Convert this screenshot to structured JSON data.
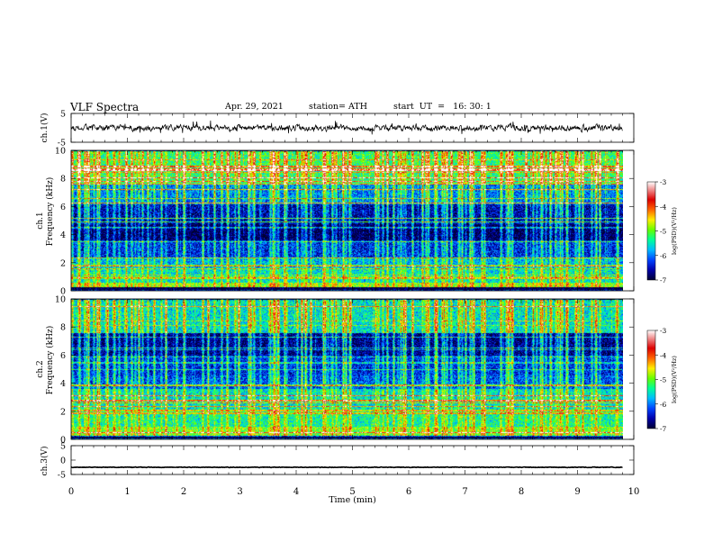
{
  "header": {
    "title": "VLF Spectra",
    "date": "Apr. 29, 2021",
    "station": "station= ATH",
    "start": "start  UT  =   16: 30: 1"
  },
  "chart_data": [
    {
      "type": "line",
      "panel": "ch1-waveform",
      "ylabel": "ch.1(V)",
      "ylim": [
        -5,
        5
      ],
      "yticks": [
        "5",
        "-5"
      ],
      "xlim": [
        0,
        10
      ],
      "data_extent_min": [
        0,
        9.8
      ],
      "baseline_v": 0
    },
    {
      "type": "heatmap",
      "panel": "ch1-spectrogram",
      "ylabel": "ch.1\nFrequency (kHz)",
      "ylabel_line1": "ch.1",
      "ylabel_line2": "Frequency (kHz)",
      "ylim": [
        0,
        10
      ],
      "yticks": [
        "0",
        "2",
        "4",
        "6",
        "8",
        "10"
      ],
      "xlim": [
        0,
        10
      ],
      "data_extent_min": [
        0,
        9.8
      ],
      "colorbar": {
        "label": "log(PSD)(V²/Hz)",
        "range": [
          -7,
          -3
        ],
        "ticks": [
          "-3",
          "-4",
          "-5",
          "-6",
          "-7"
        ]
      },
      "bands_khz": [
        {
          "f0": 0.0,
          "f1": 0.3,
          "level": -7.0
        },
        {
          "f0": 0.3,
          "f1": 0.6,
          "level": -4.5
        },
        {
          "f0": 0.6,
          "f1": 1.6,
          "level": -5.3
        },
        {
          "f0": 1.6,
          "f1": 2.4,
          "level": -5.6
        },
        {
          "f0": 2.4,
          "f1": 3.6,
          "level": -6.2
        },
        {
          "f0": 3.6,
          "f1": 4.8,
          "level": -6.9
        },
        {
          "f0": 4.8,
          "f1": 6.2,
          "level": -6.5
        },
        {
          "f0": 6.2,
          "f1": 7.6,
          "level": -5.8
        },
        {
          "f0": 7.6,
          "f1": 10.0,
          "level": -4.9
        }
      ]
    },
    {
      "type": "heatmap",
      "panel": "ch2-spectrogram",
      "ylabel": "ch.2\nFrequency (kHz)",
      "ylabel_line1": "ch.2",
      "ylabel_line2": "Frequency (kHz)",
      "ylim": [
        0,
        10
      ],
      "yticks": [
        "0",
        "2",
        "4",
        "6",
        "8",
        "10"
      ],
      "xlim": [
        0,
        10
      ],
      "data_extent_min": [
        0,
        9.8
      ],
      "colorbar": {
        "label": "log(PSD)(V²/Hz)",
        "range": [
          -7,
          -3
        ],
        "ticks": [
          "-3",
          "-4",
          "-5",
          "-6",
          "-7"
        ]
      },
      "bands_khz": [
        {
          "f0": 0.0,
          "f1": 0.3,
          "level": -7.0
        },
        {
          "f0": 0.3,
          "f1": 0.9,
          "level": -4.6
        },
        {
          "f0": 0.9,
          "f1": 2.0,
          "level": -5.1
        },
        {
          "f0": 2.0,
          "f1": 3.6,
          "level": -5.3
        },
        {
          "f0": 3.6,
          "f1": 4.6,
          "level": -6.0
        },
        {
          "f0": 4.6,
          "f1": 6.0,
          "level": -6.2
        },
        {
          "f0": 6.0,
          "f1": 7.6,
          "level": -6.7
        },
        {
          "f0": 7.6,
          "f1": 10.0,
          "level": -5.3
        }
      ]
    },
    {
      "type": "line",
      "panel": "ch3-waveform",
      "ylabel": "ch.3(V)",
      "ylim": [
        -5,
        5
      ],
      "yticks": [
        "5",
        "0",
        "-5"
      ],
      "xlim": [
        0,
        10
      ],
      "data_extent_min": [
        0,
        9.8
      ],
      "baseline_v": -2.5,
      "xlabel": "Time  (min)",
      "xticks": [
        "0",
        "1",
        "2",
        "3",
        "4",
        "5",
        "6",
        "7",
        "8",
        "9",
        "10"
      ]
    }
  ],
  "colors": {
    "colormap": [
      "#000033",
      "#0000aa",
      "#0044ff",
      "#00bbff",
      "#00ff99",
      "#66ff00",
      "#ffee00",
      "#ff6600",
      "#dd0000",
      "#ffffff"
    ]
  }
}
